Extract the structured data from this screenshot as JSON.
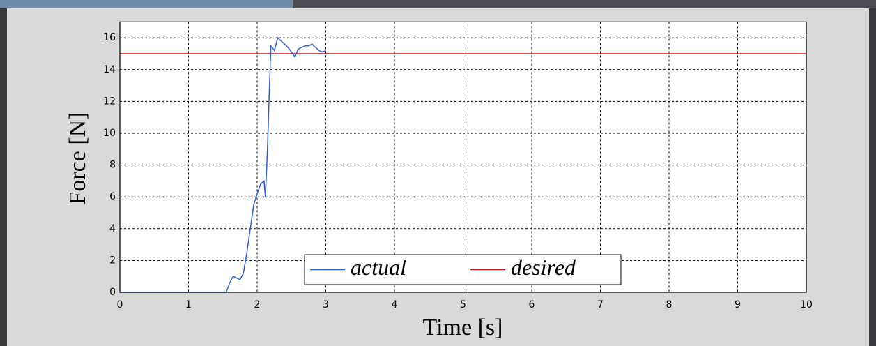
{
  "chart_data": {
    "type": "line",
    "xlabel": "Time [s]",
    "ylabel": "Force [N]",
    "series": [
      {
        "name": "actual",
        "color": "#2b5ce0",
        "x": [
          0,
          0.5,
          1.0,
          1.55,
          1.6,
          1.65,
          1.7,
          1.75,
          1.8,
          1.85,
          1.9,
          1.95,
          2.0,
          2.05,
          2.1,
          2.12,
          2.15,
          2.18,
          2.2,
          2.25,
          2.3,
          2.35,
          2.4,
          2.45,
          2.5,
          2.55,
          2.6,
          2.65,
          2.7,
          2.75,
          2.8,
          2.85,
          2.9,
          2.95,
          3.0
        ],
        "values": [
          0,
          0,
          0,
          0,
          0.6,
          1.0,
          0.9,
          0.8,
          1.2,
          2.5,
          4.0,
          5.5,
          6.2,
          6.8,
          7.0,
          6.0,
          9.0,
          13.0,
          15.5,
          15.2,
          16.0,
          15.8,
          15.6,
          15.4,
          15.1,
          14.8,
          15.3,
          15.4,
          15.5,
          15.5,
          15.6,
          15.4,
          15.2,
          15.1,
          15.2
        ]
      },
      {
        "name": "desired",
        "color": "#c0141e",
        "x": [
          0,
          10
        ],
        "values": [
          15,
          15
        ]
      }
    ],
    "xlim": [
      0,
      10
    ],
    "xticks": [
      0,
      1,
      2,
      3,
      4,
      5,
      6,
      7,
      8,
      9,
      10
    ],
    "ylim": [
      0,
      17
    ],
    "yticks": [
      0,
      2,
      4,
      6,
      8,
      10,
      12,
      14,
      16
    ],
    "grid": true,
    "legend": "lower center"
  }
}
